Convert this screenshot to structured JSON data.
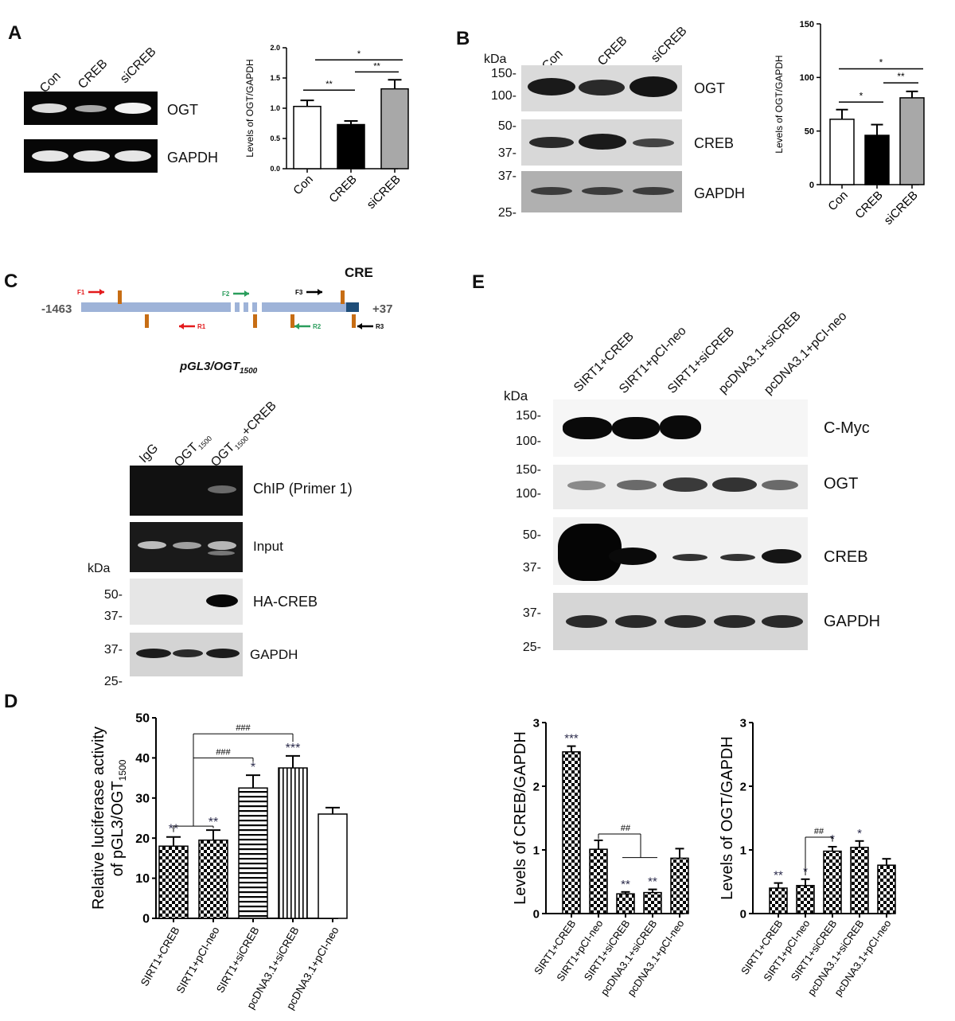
{
  "panelA": {
    "label": "A",
    "lanes": [
      "Con",
      "CREB",
      "siCREB"
    ],
    "rows": [
      "OGT",
      "GAPDH"
    ]
  },
  "panelB": {
    "label": "B",
    "kda": "kDa",
    "lanes": [
      "Con",
      "CREB",
      "siCREB"
    ],
    "rows": [
      "OGT",
      "CREB",
      "GAPDH"
    ],
    "markers": [
      "150-",
      "100-",
      "50-",
      "37-",
      "37-",
      "25-"
    ]
  },
  "panelC": {
    "label": "C",
    "cre_label": "CRE",
    "start": "-1463",
    "end": "+37",
    "primers": [
      "F1",
      "R1",
      "F2",
      "R2",
      "F3",
      "R3"
    ],
    "construct": "pGL3/OGT",
    "construct_sub": "1500",
    "kda": "kDa",
    "lanes": [
      "IgG",
      "OGT",
      "OGT",
      "+CREB"
    ],
    "lane_sub": "1500",
    "rows": [
      "ChIP (Primer 1)",
      "Input",
      "HA-CREB",
      "GAPDH"
    ],
    "markers": [
      "50-",
      "37-",
      "37-",
      "25-"
    ]
  },
  "panelD": {
    "label": "D"
  },
  "panelE": {
    "label": "E",
    "kda": "kDa",
    "lanes": [
      "SIRT1+CREB",
      "SIRT1+pCI-neo",
      "SIRT1+siCREB",
      "pcDNA3.1+siCREB",
      "pcDNA3.1+pCI-neo"
    ],
    "rows": [
      "C-Myc",
      "OGT",
      "CREB",
      "GAPDH"
    ],
    "markers": [
      "150-",
      "100-",
      "150-",
      "100-",
      "50-",
      "37-",
      "37-",
      "25-"
    ]
  },
  "chart_data": [
    {
      "id": "A",
      "type": "bar",
      "categories": [
        "Con",
        "CREB",
        "siCREB"
      ],
      "values": [
        1.03,
        0.73,
        1.32
      ],
      "errors": [
        0.1,
        0.06,
        0.15
      ],
      "fills": [
        "#ffffff",
        "#000000",
        "#a8a8a8"
      ],
      "ylabel": "Levels of OGT/GAPDH",
      "ylim": [
        0,
        2.0
      ],
      "yticks": [
        "0.0",
        "0.5",
        "1.0",
        "1.5",
        "2.0"
      ],
      "annotations": [
        "**",
        "**",
        "*"
      ]
    },
    {
      "id": "B",
      "type": "bar",
      "categories": [
        "Con",
        "CREB",
        "siCREB"
      ],
      "values": [
        61,
        46,
        81
      ],
      "errors": [
        9,
        10,
        6
      ],
      "fills": [
        "#ffffff",
        "#000000",
        "#a8a8a8"
      ],
      "ylabel": "Levels of OGT/GAPDH",
      "ylim": [
        0,
        150
      ],
      "yticks": [
        "0",
        "50",
        "100",
        "150"
      ],
      "annotations": [
        "*",
        "**",
        "*"
      ]
    },
    {
      "id": "D",
      "type": "bar",
      "categories": [
        "SIRT1+CREB",
        "SIRT1+pCI-neo",
        "SIRT1+siCREB",
        "pcDNA3.1+siCREB",
        "pcDNA3.1+pCI-neo"
      ],
      "values": [
        18,
        19.5,
        32.5,
        37.5,
        26
      ],
      "errors": [
        2.3,
        2.5,
        3.2,
        3.0,
        1.6
      ],
      "patterns": [
        "checker",
        "checker",
        "hlines",
        "vlines",
        "none"
      ],
      "ylabel": "Relative luciferase activity",
      "ylabel2": "of pGL3/OGT",
      "ylabel2_sub": "1500",
      "ylim": [
        0,
        50
      ],
      "yticks": [
        "0",
        "10",
        "20",
        "30",
        "40",
        "50"
      ],
      "stars": [
        "**",
        "**",
        "*",
        "***",
        ""
      ],
      "annotations": [
        "###",
        "###"
      ]
    },
    {
      "id": "E-CREB",
      "type": "bar",
      "categories": [
        "SIRT1+CREB",
        "SIRT1+pCI-neo",
        "SIRT1+siCREB",
        "pcDNA3.1+siCREB",
        "pcDNA3.1+pCI-neo"
      ],
      "values": [
        2.54,
        1.01,
        0.31,
        0.33,
        0.87
      ],
      "errors": [
        0.09,
        0.14,
        0.03,
        0.05,
        0.15
      ],
      "patterns": [
        "checker",
        "checker",
        "checker",
        "checker",
        "checker"
      ],
      "ylabel": "Levels of CREB/GAPDH",
      "ylim": [
        0,
        3
      ],
      "yticks": [
        "0",
        "1",
        "2",
        "3"
      ],
      "stars": [
        "***",
        "",
        "**",
        "**",
        ""
      ],
      "annotations": [
        "##"
      ]
    },
    {
      "id": "E-OGT",
      "type": "bar",
      "categories": [
        "SIRT1+CREB",
        "SIRT1+pCI-neo",
        "SIRT1+siCREB",
        "pcDNA3.1+siCREB",
        "pcDNA3.1+pCI-neo"
      ],
      "values": [
        0.4,
        0.44,
        0.98,
        1.04,
        0.76
      ],
      "errors": [
        0.08,
        0.1,
        0.07,
        0.1,
        0.1
      ],
      "patterns": [
        "checker",
        "checker",
        "checker",
        "checker",
        "checker"
      ],
      "ylabel": "Levels of OGT/GAPDH",
      "ylim": [
        0,
        3
      ],
      "yticks": [
        "0",
        "1",
        "2",
        "3"
      ],
      "stars": [
        "**",
        "*",
        "*",
        "*",
        ""
      ],
      "annotations": [
        "##"
      ]
    }
  ]
}
